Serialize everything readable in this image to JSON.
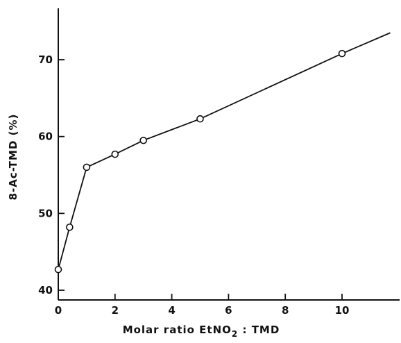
{
  "chart_data": {
    "type": "line",
    "title": "",
    "xlabel": "Molar ratio EtNO",
    "xlabel_sub": "2",
    "xlabel_tail": " : TMD",
    "ylabel": "8-Ac-TMD (%)",
    "xlim": [
      0,
      11.7
    ],
    "ylim": [
      39,
      77
    ],
    "x_ticks": [
      0,
      2,
      4,
      6,
      8,
      10
    ],
    "y_ticks": [
      40,
      50,
      60,
      70
    ],
    "grid": false,
    "series": [
      {
        "x": [
          0,
          0.4,
          1,
          2,
          3,
          5,
          10
        ],
        "y": [
          42.7,
          48.2,
          56.0,
          57.7,
          59.5,
          62.3,
          70.8
        ],
        "line_extends_to": [
          11.7,
          73.5
        ]
      }
    ]
  }
}
